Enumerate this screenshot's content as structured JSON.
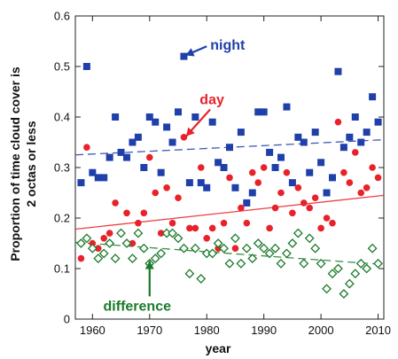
{
  "chart_data": {
    "type": "scatter",
    "xlabel": "year",
    "ylabel": "Proportion of time cloud cover is 2 octas or less",
    "xlim": [
      1957,
      2011
    ],
    "ylim": [
      0,
      0.6
    ],
    "xticks": [
      1960,
      1970,
      1980,
      1990,
      2000,
      2010
    ],
    "yticks": [
      0,
      0.1,
      0.2,
      0.3,
      0.4,
      0.5,
      0.6
    ],
    "grid": false,
    "series": [
      {
        "name": "night",
        "color": "#1f3faa",
        "marker": "square",
        "trend": [
          [
            1957,
            0.325
          ],
          [
            2011,
            0.355
          ]
        ],
        "x": [
          1958,
          1959,
          1960,
          1961,
          1962,
          1963,
          1964,
          1965,
          1966,
          1967,
          1968,
          1969,
          1970,
          1971,
          1972,
          1973,
          1974,
          1975,
          1976,
          1977,
          1978,
          1979,
          1980,
          1981,
          1982,
          1983,
          1984,
          1985,
          1986,
          1987,
          1988,
          1989,
          1990,
          1991,
          1992,
          1993,
          1994,
          1995,
          1996,
          1997,
          1998,
          1999,
          2000,
          2001,
          2002,
          2003,
          2004,
          2005,
          2006,
          2007,
          2008,
          2009,
          2010
        ],
        "y": [
          0.27,
          0.5,
          0.29,
          0.28,
          0.28,
          0.32,
          0.4,
          0.33,
          0.32,
          0.35,
          0.36,
          0.3,
          0.4,
          0.39,
          0.29,
          0.38,
          0.35,
          0.41,
          0.52,
          0.27,
          0.4,
          0.27,
          0.26,
          0.39,
          0.31,
          0.3,
          0.34,
          0.26,
          0.37,
          0.23,
          0.25,
          0.41,
          0.41,
          0.33,
          0.3,
          0.32,
          0.42,
          0.27,
          0.36,
          0.35,
          0.29,
          0.37,
          0.31,
          0.25,
          0.28,
          0.49,
          0.34,
          0.36,
          0.4,
          0.35,
          0.37,
          0.44,
          0.39
        ]
      },
      {
        "name": "day",
        "color": "#e8222a",
        "marker": "circle",
        "trend": [
          [
            1957,
            0.178
          ],
          [
            2011,
            0.245
          ]
        ],
        "x": [
          1958,
          1959,
          1960,
          1961,
          1962,
          1963,
          1964,
          1965,
          1966,
          1967,
          1968,
          1969,
          1970,
          1971,
          1972,
          1973,
          1974,
          1975,
          1976,
          1977,
          1978,
          1979,
          1980,
          1981,
          1982,
          1983,
          1984,
          1985,
          1986,
          1987,
          1988,
          1989,
          1990,
          1991,
          1992,
          1993,
          1994,
          1995,
          1996,
          1997,
          1998,
          1999,
          2000,
          2001,
          2002,
          2003,
          2004,
          2005,
          2006,
          2007,
          2008,
          2009,
          2010
        ],
        "y": [
          0.12,
          0.34,
          0.15,
          0.14,
          0.16,
          0.17,
          0.23,
          0.17,
          0.21,
          0.15,
          0.19,
          0.21,
          0.32,
          0.25,
          0.17,
          0.26,
          0.19,
          0.24,
          0.36,
          0.18,
          0.18,
          0.3,
          0.16,
          0.18,
          0.14,
          0.19,
          0.28,
          0.14,
          0.22,
          0.19,
          0.29,
          0.27,
          0.3,
          0.18,
          0.22,
          0.25,
          0.29,
          0.21,
          0.26,
          0.23,
          0.22,
          0.24,
          0.18,
          0.2,
          0.19,
          0.39,
          0.29,
          0.27,
          0.33,
          0.25,
          0.26,
          0.3,
          0.28
        ]
      },
      {
        "name": "difference",
        "color": "#1a7a2a",
        "marker": "diamond-open",
        "trend": [
          [
            1957,
            0.152
          ],
          [
            2011,
            0.108
          ]
        ],
        "x": [
          1958,
          1959,
          1960,
          1961,
          1962,
          1963,
          1964,
          1965,
          1966,
          1967,
          1968,
          1969,
          1970,
          1971,
          1972,
          1973,
          1974,
          1975,
          1976,
          1977,
          1978,
          1979,
          1980,
          1981,
          1982,
          1983,
          1984,
          1985,
          1986,
          1987,
          1988,
          1989,
          1990,
          1991,
          1992,
          1993,
          1994,
          1995,
          1996,
          1997,
          1998,
          1999,
          2000,
          2001,
          2002,
          2003,
          2004,
          2005,
          2006,
          2007,
          2008,
          2009,
          2010
        ],
        "y": [
          0.15,
          0.16,
          0.14,
          0.12,
          0.13,
          0.15,
          0.12,
          0.17,
          0.15,
          0.12,
          0.17,
          0.14,
          0.11,
          0.12,
          0.13,
          0.17,
          0.17,
          0.16,
          0.14,
          0.09,
          0.14,
          0.08,
          0.13,
          0.13,
          0.15,
          0.14,
          0.11,
          0.16,
          0.11,
          0.14,
          0.12,
          0.15,
          0.14,
          0.13,
          0.14,
          0.11,
          0.13,
          0.15,
          0.17,
          0.11,
          0.16,
          0.14,
          0.11,
          0.06,
          0.09,
          0.1,
          0.05,
          0.07,
          0.09,
          0.11,
          0.1,
          0.14,
          0.11
        ]
      }
    ],
    "annotations": [
      {
        "text": "night",
        "color": "#1f3faa",
        "arrow_from": [
          1980,
          0.54
        ],
        "arrow_to": [
          1976.3,
          0.522
        ]
      },
      {
        "text": "day",
        "color": "#e8222a",
        "arrow_from": [
          1980.6,
          0.415
        ],
        "arrow_to": [
          1976.4,
          0.362
        ]
      },
      {
        "text": "difference",
        "color": "#1a7a2a",
        "arrow_from": [
          1970,
          0.045
        ],
        "arrow_to": [
          1970,
          0.115
        ]
      }
    ]
  }
}
